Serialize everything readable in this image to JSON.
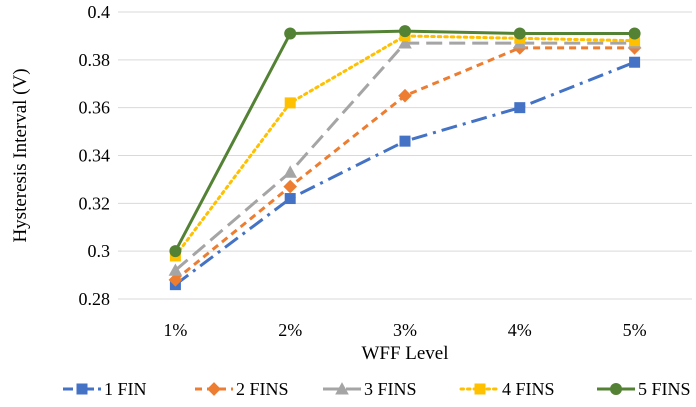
{
  "chart_data": {
    "type": "line",
    "title": "",
    "xlabel": "WFF Level",
    "ylabel": "Hysteresis Interval (V)",
    "categories": [
      "1%",
      "2%",
      "3%",
      "4%",
      "5%"
    ],
    "ylim": [
      0.28,
      0.4
    ],
    "yticks": [
      "0.28",
      "0.3",
      "0.32",
      "0.34",
      "0.36",
      "0.38",
      "0.4"
    ],
    "grid": "horizontal",
    "legend_position": "bottom",
    "series": [
      {
        "name": "1 FIN",
        "values": [
          0.286,
          0.322,
          0.346,
          0.36,
          0.379
        ],
        "color": "#4472C4",
        "marker": "square",
        "dash": "dash-dot"
      },
      {
        "name": "2 FINS",
        "values": [
          0.288,
          0.327,
          0.365,
          0.385,
          0.385
        ],
        "color": "#ED7D31",
        "marker": "diamond",
        "dash": "short-dash"
      },
      {
        "name": "3 FINS",
        "values": [
          0.292,
          0.333,
          0.387,
          0.387,
          0.387
        ],
        "color": "#A5A5A5",
        "marker": "triangle",
        "dash": "long-dash"
      },
      {
        "name": "4 FINS",
        "values": [
          0.298,
          0.362,
          0.39,
          0.389,
          0.388
        ],
        "color": "#FFC000",
        "marker": "square",
        "dash": "dot"
      },
      {
        "name": "5 FINS",
        "values": [
          0.3,
          0.391,
          0.392,
          0.391,
          0.391
        ],
        "color": "#548235",
        "marker": "circle",
        "dash": "solid"
      }
    ]
  }
}
